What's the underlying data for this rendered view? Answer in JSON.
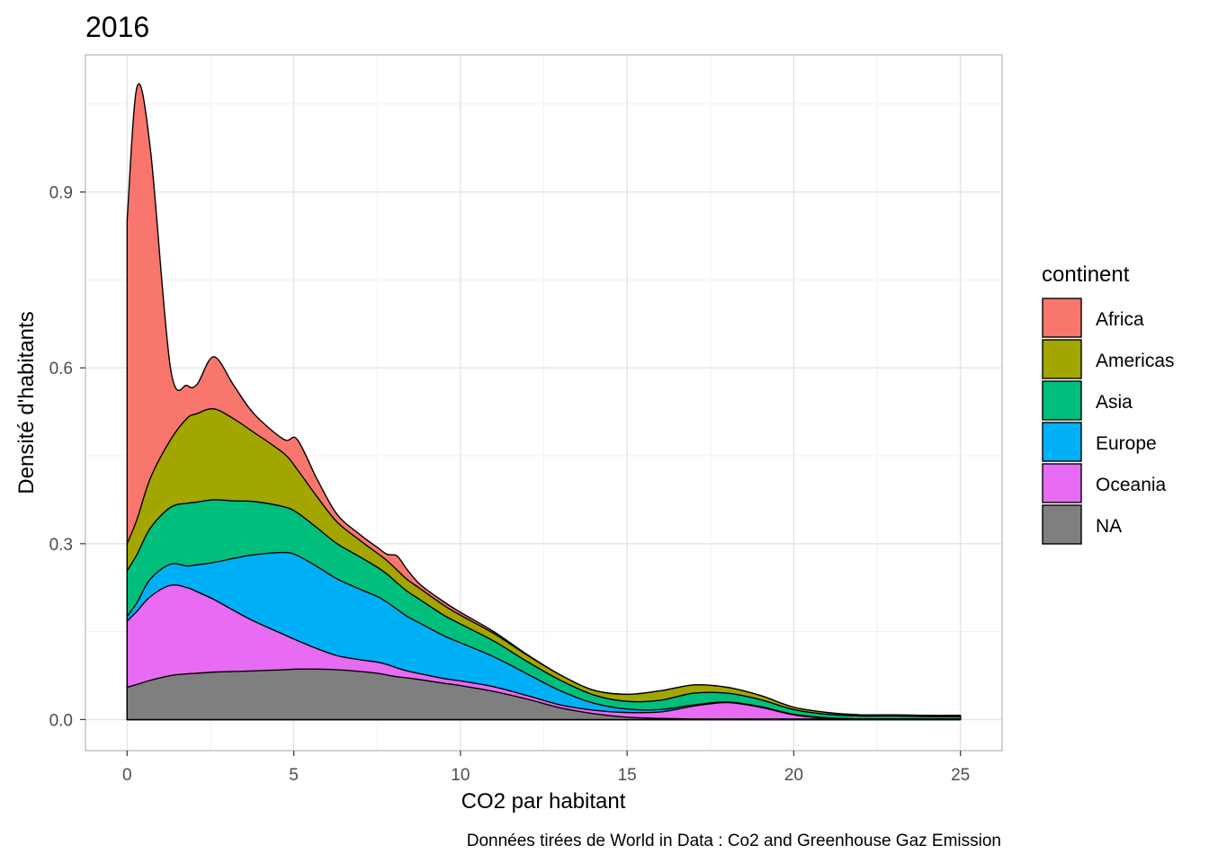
{
  "chart_data": {
    "type": "area",
    "title": "2016",
    "xlabel": "CO2 par habitant",
    "ylabel": "Densité d'habitants",
    "caption": "Données tirées de World in Data : Co2 and Greenhouse Gaz Emission",
    "xlim": [
      -1.25,
      26.25
    ],
    "ylim": [
      -0.053,
      1.134
    ],
    "x_ticks": [
      0,
      5,
      10,
      15,
      20,
      25
    ],
    "y_ticks": [
      0.0,
      0.3,
      0.6,
      0.9
    ],
    "x_tick_labels": [
      "0",
      "5",
      "10",
      "15",
      "20",
      "25"
    ],
    "y_tick_labels": [
      "0.0",
      "0.3",
      "0.6",
      "0.9"
    ],
    "grid": true,
    "stacked": true,
    "legend": {
      "title": "continent",
      "position": "right"
    },
    "x": [
      0,
      0.3,
      0.7,
      1.3,
      1.8,
      2.1,
      2.6,
      3.2,
      3.8,
      4.7,
      5.1,
      5.7,
      6.3,
      7,
      7.5,
      7.8,
      8.1,
      8.4,
      8.8,
      9.5,
      10,
      11,
      12,
      13,
      14,
      15,
      16,
      17,
      18,
      19,
      20,
      21,
      22,
      23,
      24,
      25
    ],
    "series": [
      {
        "name": "NA",
        "color": "#7f7f7f",
        "values": [
          0.055,
          0.06,
          0.067,
          0.075,
          0.078,
          0.079,
          0.081,
          0.082,
          0.083,
          0.085,
          0.086,
          0.086,
          0.085,
          0.082,
          0.079,
          0.076,
          0.073,
          0.071,
          0.068,
          0.062,
          0.058,
          0.048,
          0.035,
          0.02,
          0.01,
          0.004,
          0.002,
          0.001,
          0.001,
          0.001,
          0.001,
          0.001,
          0.001,
          0.001,
          0.001,
          0.001
        ]
      },
      {
        "name": "Oceania",
        "color": "#e76bf3",
        "values": [
          0.113,
          0.125,
          0.143,
          0.154,
          0.147,
          0.139,
          0.124,
          0.104,
          0.085,
          0.06,
          0.049,
          0.035,
          0.024,
          0.02,
          0.019,
          0.018,
          0.015,
          0.012,
          0.01,
          0.008,
          0.008,
          0.008,
          0.006,
          0.005,
          0.006,
          0.008,
          0.011,
          0.022,
          0.028,
          0.02,
          0.007,
          0.001,
          0.0,
          0.0,
          0.0,
          0.0
        ]
      },
      {
        "name": "Europe",
        "color": "#00b0f6",
        "values": [
          0.008,
          0.015,
          0.03,
          0.036,
          0.037,
          0.046,
          0.063,
          0.089,
          0.113,
          0.14,
          0.145,
          0.14,
          0.131,
          0.12,
          0.112,
          0.106,
          0.1,
          0.093,
          0.086,
          0.073,
          0.065,
          0.051,
          0.037,
          0.024,
          0.012,
          0.006,
          0.004,
          0.002,
          0.001,
          0.001,
          0.001,
          0.001,
          0.0,
          0.0,
          0.0,
          0.0
        ]
      },
      {
        "name": "Asia",
        "color": "#00bf7d",
        "values": [
          0.078,
          0.082,
          0.087,
          0.097,
          0.107,
          0.107,
          0.107,
          0.098,
          0.091,
          0.078,
          0.073,
          0.066,
          0.06,
          0.055,
          0.05,
          0.048,
          0.045,
          0.043,
          0.04,
          0.035,
          0.032,
          0.027,
          0.021,
          0.018,
          0.014,
          0.013,
          0.016,
          0.02,
          0.015,
          0.012,
          0.008,
          0.006,
          0.005,
          0.005,
          0.004,
          0.004
        ]
      },
      {
        "name": "Americas",
        "color": "#a3a500",
        "values": [
          0.046,
          0.06,
          0.085,
          0.115,
          0.145,
          0.151,
          0.155,
          0.14,
          0.118,
          0.091,
          0.074,
          0.053,
          0.037,
          0.028,
          0.024,
          0.023,
          0.022,
          0.02,
          0.019,
          0.017,
          0.015,
          0.013,
          0.011,
          0.009,
          0.008,
          0.012,
          0.016,
          0.014,
          0.01,
          0.007,
          0.004,
          0.003,
          0.002,
          0.002,
          0.002,
          0.002
        ]
      },
      {
        "name": "Africa",
        "color": "#f8766d",
        "values": [
          0.552,
          0.738,
          0.56,
          0.123,
          0.056,
          0.05,
          0.089,
          0.057,
          0.032,
          0.024,
          0.051,
          0.03,
          0.013,
          0.01,
          0.01,
          0.011,
          0.024,
          0.017,
          0.007,
          0.006,
          0.005,
          0.003,
          0.001,
          0.0,
          0.0,
          0.0,
          0.0,
          0.0,
          0.0,
          0.0,
          0.0,
          0.0,
          0.0,
          0.0,
          0.0,
          0.0
        ]
      }
    ]
  }
}
